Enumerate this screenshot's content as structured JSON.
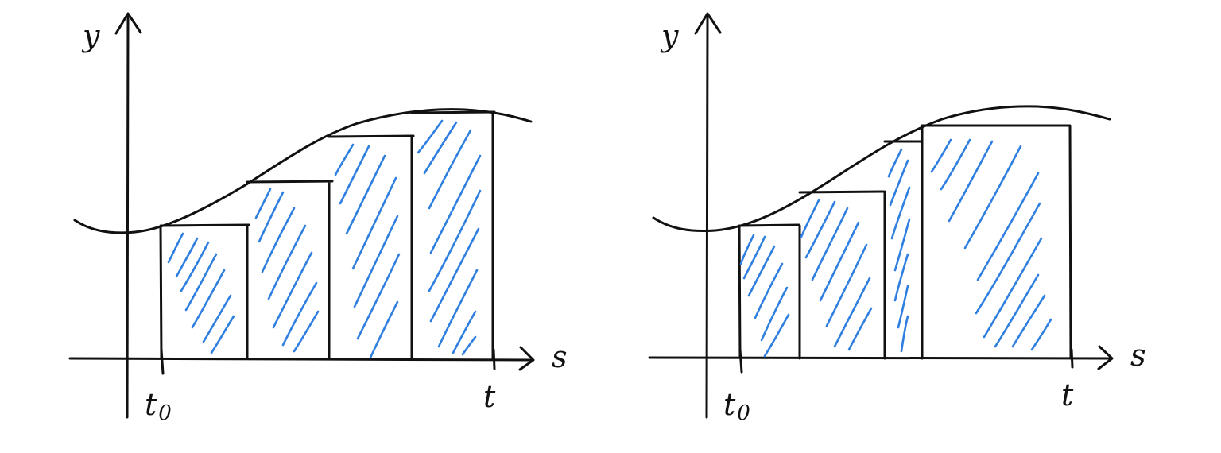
{
  "colors": {
    "ink": "#111111",
    "hatch": "#2f7fe0",
    "background": "#ffffff"
  },
  "panels": [
    {
      "name": "equal-width-partition",
      "y_axis_label": "y",
      "x_axis_label": "s",
      "start_label_main": "t",
      "start_label_sub": "0",
      "end_label": "t",
      "rectangle_count": 4
    },
    {
      "name": "unequal-width-partition",
      "y_axis_label": "y",
      "x_axis_label": "s",
      "start_label_main": "t",
      "start_label_sub": "0",
      "end_label": "t",
      "rectangle_count": 4
    }
  ]
}
